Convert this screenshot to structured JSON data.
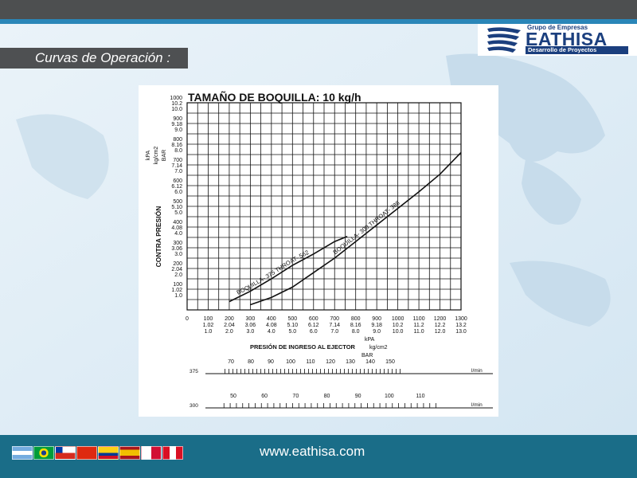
{
  "header": {
    "logo_small": "Grupo de Empresas",
    "logo_big": "EATHISA",
    "logo_sub": "Desarrollo de Proyectos"
  },
  "section_title": "Curvas de Operación :",
  "footer": {
    "url": "www.eathisa.com"
  },
  "flags": [
    "argentina-flag",
    "brazil-flag",
    "chile-flag",
    "china-flag",
    "colombia-flag",
    "spain-flag",
    "panama-flag",
    "peru-flag"
  ],
  "colors": {
    "topbar": "#4d4f50",
    "accent_blue": "#2a86b8",
    "footer": "#1a6d88",
    "brand": "#1b3f7e"
  },
  "chart_data": {
    "type": "line",
    "title": "TAMAÑO DE BOQUILLA: 10 kg/h",
    "ylabel": "CONTRA PRESIÓN",
    "yunits": [
      "kPA",
      "kg/cm2",
      "BAR"
    ],
    "xlabel": "PRESIÓN DE INGRESO AL EJECTOR",
    "xunits": [
      "kPA",
      "kg/cm2",
      "BAR"
    ],
    "xlim": [
      0,
      1300
    ],
    "ylim": [
      0,
      1000
    ],
    "grid": true,
    "x_ticks": [
      [
        "0",
        "",
        ""
      ],
      [
        "100",
        "1.02",
        "1.0"
      ],
      [
        "200",
        "2.04",
        "2.0"
      ],
      [
        "300",
        "3.06",
        "3.0"
      ],
      [
        "400",
        "4.08",
        "4.0"
      ],
      [
        "500",
        "5.10",
        "5.0"
      ],
      [
        "600",
        "6.12",
        "6.0"
      ],
      [
        "700",
        "7.14",
        "7.0"
      ],
      [
        "800",
        "8.16",
        "8.0"
      ],
      [
        "900",
        "9.18",
        "9.0"
      ],
      [
        "1000",
        "10.2",
        "10.0"
      ],
      [
        "1100",
        "11.2",
        "11.0"
      ],
      [
        "1200",
        "12.2",
        "12.0"
      ],
      [
        "1300",
        "13.2",
        "13.0"
      ]
    ],
    "y_ticks": [
      [
        "1000",
        "10.2",
        "10.0"
      ],
      [
        "900",
        "9.18",
        "9.0"
      ],
      [
        "800",
        "8.16",
        "8.0"
      ],
      [
        "700",
        "7.14",
        "7.0"
      ],
      [
        "600",
        "6.12",
        "6.0"
      ],
      [
        "500",
        "5.10",
        "5.0"
      ],
      [
        "400",
        "4.08",
        "4.0"
      ],
      [
        "300",
        "3.06",
        "3.0"
      ],
      [
        "200",
        "2.04",
        "2.0"
      ],
      [
        "100",
        "1.02",
        "1.0"
      ]
    ],
    "series": [
      {
        "name": "BOQUILLA- 375 THROAT- 562",
        "x": [
          200,
          300,
          400,
          500,
          600,
          700,
          760
        ],
        "y": [
          40,
          90,
          150,
          215,
          270,
          330,
          355
        ]
      },
      {
        "name": "BOQUILLA- 300 THROAT- 388",
        "x": [
          300,
          400,
          500,
          600,
          700,
          800,
          900,
          1000,
          1100,
          1200,
          1300
        ],
        "y": [
          25,
          60,
          110,
          180,
          250,
          330,
          410,
          490,
          570,
          655,
          760
        ]
      }
    ],
    "flow_scales": [
      {
        "label": "375",
        "unit": "l/min",
        "values": [
          "70",
          "80",
          "90",
          "100",
          "110",
          "120",
          "130",
          "140",
          "150"
        ]
      },
      {
        "label": "300",
        "unit": "l/min",
        "values": [
          "50",
          "60",
          "70",
          "80",
          "90",
          "100",
          "110"
        ]
      }
    ]
  }
}
